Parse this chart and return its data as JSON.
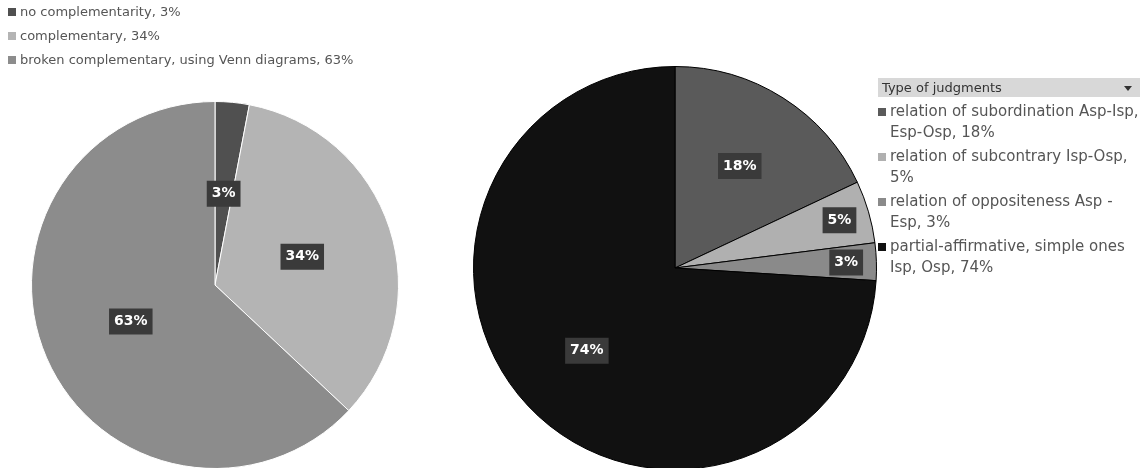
{
  "chart_data": [
    {
      "type": "pie",
      "categories": [
        "no complementarity, 3%",
        "complementary, 34%",
        "broken complementary, using Venn diagrams, 63%"
      ],
      "values": [
        3,
        34,
        63
      ],
      "colors": [
        "#505050",
        "#b4b4b4",
        "#8c8c8c"
      ],
      "value_labels": [
        "3%",
        "34%",
        "63%"
      ],
      "legend": "top left"
    },
    {
      "type": "pie",
      "legend_title": "Type of judgments",
      "categories": [
        "relation of  subordination Asp-Isp, Esp-Osp, 18%",
        "relation  of subcontrary Isp-Osp, 5%",
        "relation of oppositeness Asp - Esp, 3%",
        "partial-affirmative, simple ones Isp, Osp, 74%"
      ],
      "values": [
        18,
        5,
        3,
        74
      ],
      "colors": [
        "#5a5a5a",
        "#b0b0b0",
        "#8a8a8a",
        "#111111"
      ],
      "value_labels": [
        "18%",
        "5%",
        "3%",
        "74%"
      ],
      "legend": "right"
    }
  ]
}
